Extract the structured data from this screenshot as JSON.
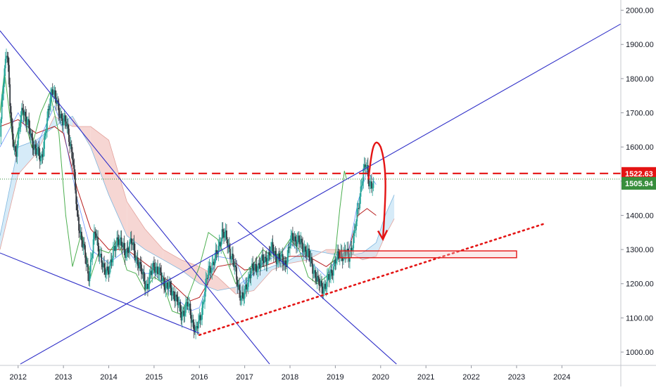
{
  "chart_data": {
    "type": "line",
    "title": "",
    "xlabel": "",
    "ylabel": "",
    "x_ticks": [
      "2012",
      "2013",
      "2014",
      "2015",
      "2016",
      "2017",
      "2018",
      "2019",
      "2020",
      "2021",
      "2022",
      "2023",
      "2024"
    ],
    "y_ticks": [
      "1000.00",
      "1100.00",
      "1200.00",
      "1300.00",
      "1400.00",
      "1500.00",
      "1600.00",
      "1700.00",
      "1800.00",
      "1900.00",
      "2000.00"
    ],
    "xlim": [
      2011.6,
      2025.3
    ],
    "ylim": [
      961,
      2030
    ],
    "grid": false,
    "colors": {
      "candle_up": "#26a69a",
      "candle_down": "#ef5350",
      "price_line": "#131722",
      "lagging_span": "#4caf50",
      "kijun": "#b71c1c",
      "tenkan": "#2962ff",
      "cloud_bull": "#d6ebf8",
      "cloud_bear": "#f6d6d3",
      "trendline": "#2f2fc8",
      "annotation": "#e41414",
      "last_price": "#388e3c",
      "resistance": "#e41414"
    },
    "price_series": {
      "name": "Gold weekly",
      "x": [
        2011.6,
        2011.68,
        2011.75,
        2011.85,
        2011.95,
        2012.1,
        2012.3,
        2012.5,
        2012.65,
        2012.75,
        2012.9,
        2013.05,
        2013.2,
        2013.3,
        2013.45,
        2013.55,
        2013.7,
        2013.9,
        2014.05,
        2014.2,
        2014.35,
        2014.5,
        2014.7,
        2014.85,
        2015.0,
        2015.1,
        2015.3,
        2015.45,
        2015.6,
        2015.75,
        2015.92,
        2016.05,
        2016.2,
        2016.35,
        2016.5,
        2016.6,
        2016.75,
        2016.9,
        2016.96,
        2017.1,
        2017.25,
        2017.45,
        2017.6,
        2017.7,
        2017.9,
        2018.05,
        2018.2,
        2018.35,
        2018.5,
        2018.62,
        2018.78,
        2018.95,
        2019.1,
        2019.3,
        2019.42,
        2019.5,
        2019.58,
        2019.67,
        2019.75,
        2019.85
      ],
      "y": [
        1630,
        1800,
        1900,
        1650,
        1580,
        1720,
        1620,
        1560,
        1680,
        1780,
        1700,
        1670,
        1580,
        1400,
        1300,
        1220,
        1350,
        1230,
        1260,
        1340,
        1290,
        1320,
        1240,
        1190,
        1260,
        1230,
        1190,
        1170,
        1110,
        1140,
        1055,
        1120,
        1240,
        1270,
        1350,
        1330,
        1260,
        1170,
        1150,
        1230,
        1250,
        1270,
        1300,
        1280,
        1260,
        1340,
        1320,
        1300,
        1250,
        1200,
        1190,
        1250,
        1290,
        1280,
        1340,
        1420,
        1500,
        1550,
        1500,
        1480
      ]
    },
    "lagging_span": {
      "x": [
        2011.6,
        2011.7,
        2011.9,
        2012.1,
        2012.3,
        2012.5,
        2012.7,
        2012.9,
        2013.05,
        2013.2,
        2013.4,
        2013.6,
        2013.8,
        2014.0,
        2014.2,
        2014.4,
        2014.6,
        2014.8,
        2015.0,
        2015.2,
        2015.4,
        2015.6,
        2015.8,
        2016.0,
        2016.2,
        2016.4,
        2016.6,
        2016.8,
        2017.0,
        2017.2,
        2017.4,
        2017.6,
        2017.8,
        2018.0,
        2018.2,
        2018.4,
        2018.6,
        2018.8,
        2019.0,
        2019.1,
        2019.2,
        2019.25
      ],
      "y": [
        1700,
        1820,
        1600,
        1700,
        1600,
        1700,
        1760,
        1640,
        1400,
        1250,
        1350,
        1220,
        1300,
        1290,
        1330,
        1240,
        1230,
        1180,
        1220,
        1200,
        1120,
        1110,
        1180,
        1250,
        1350,
        1330,
        1270,
        1200,
        1230,
        1260,
        1300,
        1280,
        1290,
        1330,
        1300,
        1220,
        1200,
        1220,
        1290,
        1420,
        1530,
        1505
      ]
    },
    "kijun": {
      "x": [
        2011.6,
        2012.0,
        2012.4,
        2012.8,
        2013.0,
        2013.3,
        2013.6,
        2014.0,
        2014.4,
        2014.8,
        2015.0,
        2015.4,
        2015.8,
        2016.0,
        2016.4,
        2016.8,
        2017.0,
        2017.4,
        2017.8,
        2018.0,
        2018.4,
        2018.8,
        2019.0,
        2019.3,
        2019.5,
        2019.7,
        2019.9
      ],
      "y": [
        1660,
        1680,
        1640,
        1660,
        1640,
        1480,
        1360,
        1300,
        1300,
        1260,
        1240,
        1200,
        1150,
        1160,
        1250,
        1260,
        1240,
        1250,
        1270,
        1280,
        1280,
        1250,
        1270,
        1300,
        1400,
        1420,
        1400
      ]
    },
    "tenkan": {
      "x": [
        2011.6,
        2012.0,
        2012.4,
        2012.8,
        2013.0,
        2013.3,
        2013.6,
        2014.0,
        2014.4,
        2014.8,
        2015.0,
        2015.4,
        2015.8,
        2016.0,
        2016.4,
        2016.8,
        2017.0,
        2017.4,
        2017.8,
        2018.0,
        2018.4,
        2018.8,
        2019.0,
        2019.3,
        2019.5,
        2019.7,
        2019.9
      ],
      "y": [
        1600,
        1700,
        1600,
        1720,
        1650,
        1450,
        1300,
        1260,
        1300,
        1230,
        1230,
        1170,
        1120,
        1130,
        1280,
        1270,
        1200,
        1260,
        1290,
        1320,
        1270,
        1220,
        1270,
        1300,
        1440,
        1530,
        1490
      ]
    },
    "cloud": {
      "x": [
        2011.6,
        2012.0,
        2012.4,
        2012.8,
        2013.2,
        2013.6,
        2014.0,
        2014.4,
        2014.8,
        2015.2,
        2015.6,
        2016.0,
        2016.4,
        2016.8,
        2017.2,
        2017.6,
        2018.0,
        2018.4,
        2018.8,
        2019.2,
        2019.6,
        2019.9,
        2020.1,
        2020.3
      ],
      "span_a": [
        1340,
        1600,
        1620,
        1660,
        1690,
        1600,
        1460,
        1340,
        1300,
        1270,
        1240,
        1200,
        1180,
        1190,
        1230,
        1250,
        1270,
        1300,
        1290,
        1280,
        1290,
        1320,
        1400,
        1460
      ],
      "span_b": [
        1300,
        1520,
        1580,
        1690,
        1660,
        1660,
        1620,
        1440,
        1360,
        1300,
        1270,
        1250,
        1220,
        1170,
        1180,
        1240,
        1260,
        1270,
        1300,
        1300,
        1270,
        1280,
        1340,
        1390
      ]
    },
    "trendlines": [
      {
        "x": [
          2011.6,
          2017.55
        ],
        "y": [
          1940,
          965
        ]
      },
      {
        "x": [
          2011.6,
          2016.0
        ],
        "y": [
          1290,
          1055
        ]
      },
      {
        "x": [
          2012.05,
          2025.3
        ],
        "y": [
          965,
          1960
        ]
      },
      {
        "x": [
          2016.85,
          2020.35
        ],
        "y": [
          1380,
          965
        ]
      }
    ],
    "support_line": {
      "x": [
        2016.0,
        2023.6
      ],
      "y": [
        1050,
        1375
      ]
    },
    "resistance_level": 1522.63,
    "last_price": 1505.94,
    "price_labels": {
      "resistance": "1522.63",
      "last": "1505.94"
    },
    "zone": {
      "x": [
        2019.1,
        2023.0
      ],
      "y": [
        1276,
        1296
      ]
    },
    "projection_arrow": {
      "x": [
        2019.73,
        2020.0,
        2020.05
      ],
      "y": [
        1505,
        1600,
        1330
      ]
    }
  }
}
